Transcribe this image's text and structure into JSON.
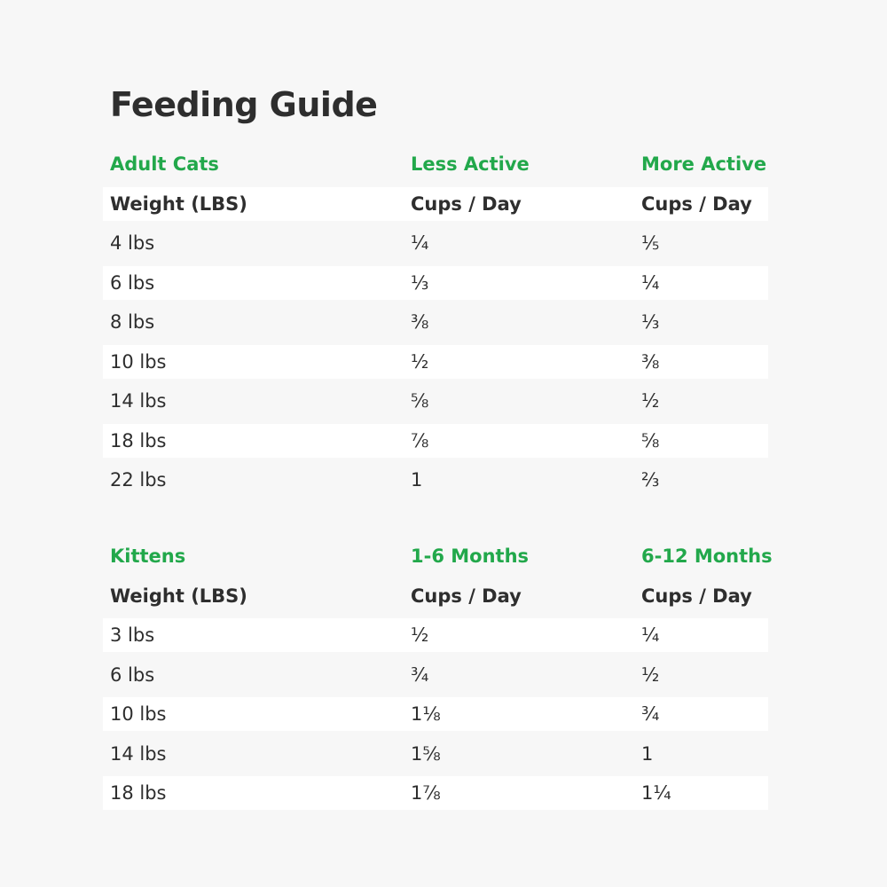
{
  "title": "Feeding Guide",
  "tables": [
    {
      "headers": [
        "Adult Cats",
        "Less Active",
        "More Active"
      ],
      "subheaders": [
        "Weight (LBS)",
        "Cups / Day",
        "Cups / Day"
      ],
      "rows": [
        [
          "4 lbs",
          "¼",
          "⅕"
        ],
        [
          "6 lbs",
          "⅓",
          "¼"
        ],
        [
          "8 lbs",
          "⅜",
          "⅓"
        ],
        [
          "10 lbs",
          "½",
          "⅜"
        ],
        [
          "14 lbs",
          "⅝",
          "½"
        ],
        [
          "18 lbs",
          "⅞",
          "⅝"
        ],
        [
          "22 lbs",
          "1",
          "⅔"
        ]
      ]
    },
    {
      "headers": [
        "Kittens",
        "1-6 Months",
        "6-12 Months"
      ],
      "subheaders": [
        "Weight (LBS)",
        "Cups / Day",
        "Cups / Day"
      ],
      "rows": [
        [
          "3 lbs",
          "½",
          "¼"
        ],
        [
          "6 lbs",
          "¾",
          "½"
        ],
        [
          "10 lbs",
          "1⅛",
          "¾"
        ],
        [
          "14 lbs",
          "1⅝",
          "1"
        ],
        [
          "18 lbs",
          "1⅞",
          "1¼"
        ]
      ]
    }
  ]
}
